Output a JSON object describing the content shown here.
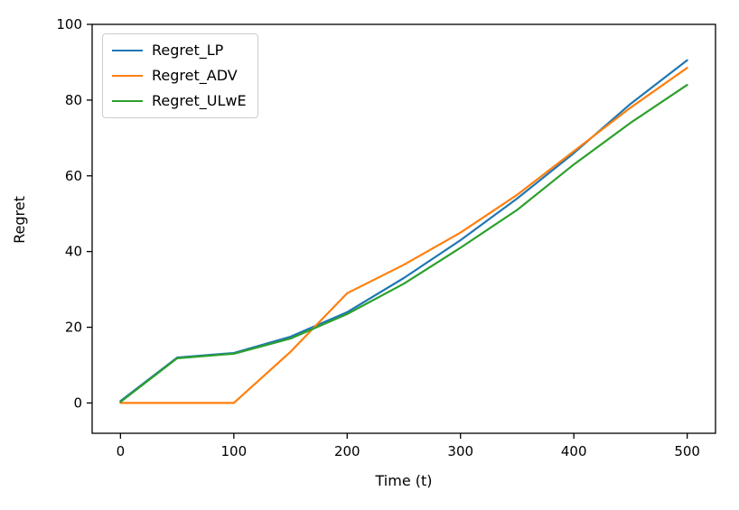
{
  "figure": {
    "xlabel": "Time (t)",
    "ylabel": "Regret"
  },
  "chart_data": {
    "type": "line",
    "title": "",
    "xlabel": "Time (t)",
    "ylabel": "Regret",
    "xlim": [
      -25,
      525
    ],
    "ylim": [
      -8,
      100
    ],
    "xticks": [
      0,
      100,
      200,
      300,
      400,
      500
    ],
    "yticks": [
      0,
      20,
      40,
      60,
      80,
      100
    ],
    "grid": false,
    "legend_position": "upper left",
    "x": [
      0,
      50,
      100,
      150,
      200,
      250,
      300,
      350,
      400,
      450,
      500
    ],
    "series": [
      {
        "name": "Regret_LP",
        "color": "#1f77b4",
        "values": [
          0.5,
          12,
          13.2,
          17.5,
          24,
          33,
          43,
          54,
          66,
          79,
          90.5
        ]
      },
      {
        "name": "Regret_ADV",
        "color": "#ff7f0e",
        "values": [
          0,
          0,
          0,
          13.5,
          29,
          36.5,
          45,
          55,
          66.5,
          78,
          88.5
        ]
      },
      {
        "name": "Regret_ULwE",
        "color": "#2ca02c",
        "values": [
          0.3,
          11.8,
          13,
          17,
          23.5,
          31.5,
          41,
          51,
          63,
          74,
          84
        ]
      }
    ]
  }
}
